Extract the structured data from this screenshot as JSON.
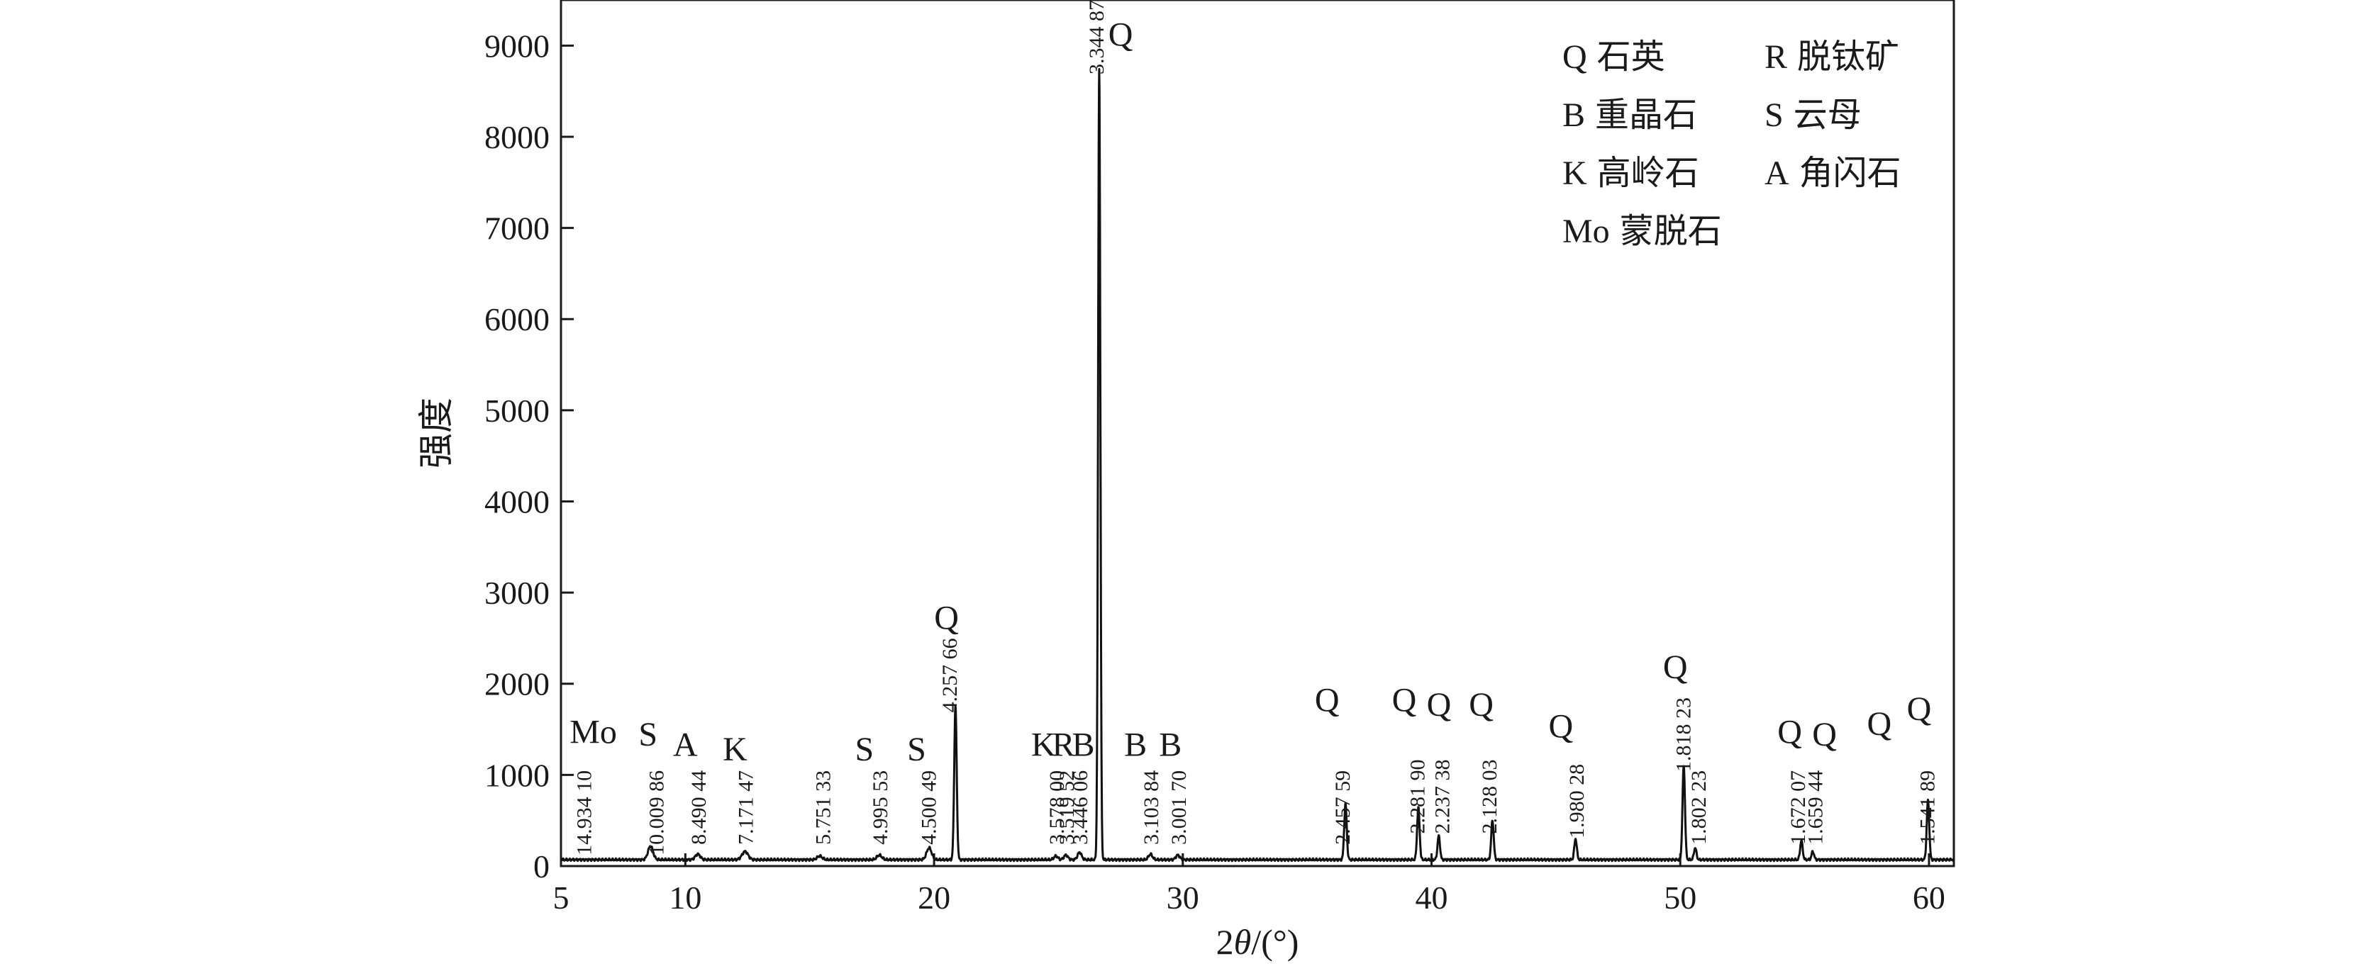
{
  "chart_data": {
    "type": "line",
    "xlabel_parts": [
      "2",
      "θ",
      "/(°)"
    ],
    "ylabel": "强度",
    "xlim": [
      5,
      61
    ],
    "ylim": [
      0,
      9500
    ],
    "x_ticks": [
      5,
      10,
      20,
      30,
      40,
      50,
      60
    ],
    "y_ticks": [
      0,
      1000,
      2000,
      3000,
      4000,
      5000,
      6000,
      7000,
      8000,
      9000
    ],
    "grid": false,
    "baseline": 70,
    "peaks": [
      {
        "x": 8.6,
        "y": 220,
        "w": 0.1
      },
      {
        "x": 10.5,
        "y": 130,
        "w": 0.1
      },
      {
        "x": 12.4,
        "y": 160,
        "w": 0.12
      },
      {
        "x": 15.4,
        "y": 110,
        "w": 0.1
      },
      {
        "x": 17.8,
        "y": 120,
        "w": 0.1
      },
      {
        "x": 19.8,
        "y": 200,
        "w": 0.1
      },
      {
        "x": 20.86,
        "y": 1750,
        "w": 0.05
      },
      {
        "x": 24.9,
        "y": 110,
        "w": 0.08
      },
      {
        "x": 25.3,
        "y": 120,
        "w": 0.08
      },
      {
        "x": 25.85,
        "y": 150,
        "w": 0.08
      },
      {
        "x": 26.64,
        "y": 8750,
        "w": 0.045
      },
      {
        "x": 28.7,
        "y": 130,
        "w": 0.08
      },
      {
        "x": 29.8,
        "y": 120,
        "w": 0.08
      },
      {
        "x": 36.54,
        "y": 680,
        "w": 0.05
      },
      {
        "x": 39.47,
        "y": 640,
        "w": 0.05
      },
      {
        "x": 40.29,
        "y": 330,
        "w": 0.05
      },
      {
        "x": 42.45,
        "y": 500,
        "w": 0.05
      },
      {
        "x": 45.79,
        "y": 300,
        "w": 0.05
      },
      {
        "x": 50.14,
        "y": 1100,
        "w": 0.05
      },
      {
        "x": 50.6,
        "y": 200,
        "w": 0.05
      },
      {
        "x": 54.87,
        "y": 280,
        "w": 0.05
      },
      {
        "x": 55.33,
        "y": 160,
        "w": 0.05
      },
      {
        "x": 59.96,
        "y": 720,
        "w": 0.05
      }
    ],
    "d_labels": [
      {
        "x": 5.9,
        "top": 1050,
        "text": "14.934 10"
      },
      {
        "x": 8.8,
        "top": 1050,
        "text": "10.009 86"
      },
      {
        "x": 10.5,
        "top": 1050,
        "text": "8.490 44"
      },
      {
        "x": 12.4,
        "top": 1050,
        "text": "7.171 47"
      },
      {
        "x": 15.5,
        "top": 1050,
        "text": "5.751 33"
      },
      {
        "x": 17.8,
        "top": 1050,
        "text": "4.995 53"
      },
      {
        "x": 19.75,
        "top": 1050,
        "text": "4.500 49"
      },
      {
        "x": 20.6,
        "top": 2500,
        "text": "4.257 66"
      },
      {
        "x": 24.9,
        "top": 1050,
        "text": "3.578 00"
      },
      {
        "x": 25.3,
        "top": 1050,
        "text": "3.519 52"
      },
      {
        "x": 25.85,
        "top": 1050,
        "text": "3.446 06"
      },
      {
        "x": 26.5,
        "top": 9500,
        "text": "3.344 87"
      },
      {
        "x": 28.7,
        "top": 1050,
        "text": "3.103 84"
      },
      {
        "x": 29.8,
        "top": 1050,
        "text": "3.001 70"
      },
      {
        "x": 36.4,
        "top": 1050,
        "text": "2.457 59"
      },
      {
        "x": 39.4,
        "top": 1170,
        "text": "2.281 90"
      },
      {
        "x": 40.4,
        "top": 1170,
        "text": "2.237 38"
      },
      {
        "x": 42.3,
        "top": 1170,
        "text": "2.128 03"
      },
      {
        "x": 45.8,
        "top": 1120,
        "text": "1.980 28"
      },
      {
        "x": 50.1,
        "top": 1850,
        "text": "1.818 23"
      },
      {
        "x": 50.7,
        "top": 1050,
        "text": "1.802 23"
      },
      {
        "x": 54.7,
        "top": 1050,
        "text": "1.672 07"
      },
      {
        "x": 55.4,
        "top": 1050,
        "text": "1.659 44"
      },
      {
        "x": 59.9,
        "top": 1050,
        "text": "1.541 89"
      }
    ],
    "phase_labels": [
      {
        "x": 6.3,
        "y": 1350,
        "text": "Mo"
      },
      {
        "x": 8.5,
        "y": 1320,
        "text": "S"
      },
      {
        "x": 10.0,
        "y": 1210,
        "text": "A"
      },
      {
        "x": 12.0,
        "y": 1160,
        "text": "K"
      },
      {
        "x": 17.2,
        "y": 1160,
        "text": "S"
      },
      {
        "x": 19.3,
        "y": 1160,
        "text": "S"
      },
      {
        "x": 20.5,
        "y": 2600,
        "text": "Q"
      },
      {
        "x": 24.4,
        "y": 1210,
        "text": "K"
      },
      {
        "x": 25.2,
        "y": 1210,
        "text": "R"
      },
      {
        "x": 26.0,
        "y": 1210,
        "text": "B"
      },
      {
        "x": 27.5,
        "y": 9000,
        "text": "Q"
      },
      {
        "x": 28.1,
        "y": 1210,
        "text": "B"
      },
      {
        "x": 29.5,
        "y": 1210,
        "text": "B"
      },
      {
        "x": 35.8,
        "y": 1700,
        "text": "Q"
      },
      {
        "x": 38.9,
        "y": 1700,
        "text": "Q"
      },
      {
        "x": 40.3,
        "y": 1650,
        "text": "Q"
      },
      {
        "x": 42.0,
        "y": 1650,
        "text": "Q"
      },
      {
        "x": 45.2,
        "y": 1410,
        "text": "Q"
      },
      {
        "x": 49.8,
        "y": 2060,
        "text": "Q"
      },
      {
        "x": 54.4,
        "y": 1350,
        "text": "Q"
      },
      {
        "x": 55.8,
        "y": 1320,
        "text": "Q"
      },
      {
        "x": 58.0,
        "y": 1440,
        "text": "Q"
      },
      {
        "x": 59.6,
        "y": 1600,
        "text": "Q"
      }
    ],
    "legend_position": "top-right",
    "legend": [
      {
        "symbol": "Q",
        "name": "石英"
      },
      {
        "symbol": "R",
        "name": "脱钛矿"
      },
      {
        "symbol": "B",
        "name": "重晶石"
      },
      {
        "symbol": "S",
        "name": "云母"
      },
      {
        "symbol": "K",
        "name": "高岭石"
      },
      {
        "symbol": "A",
        "name": "角闪石"
      },
      {
        "symbol": "Mo",
        "name": "蒙脱石"
      }
    ]
  }
}
